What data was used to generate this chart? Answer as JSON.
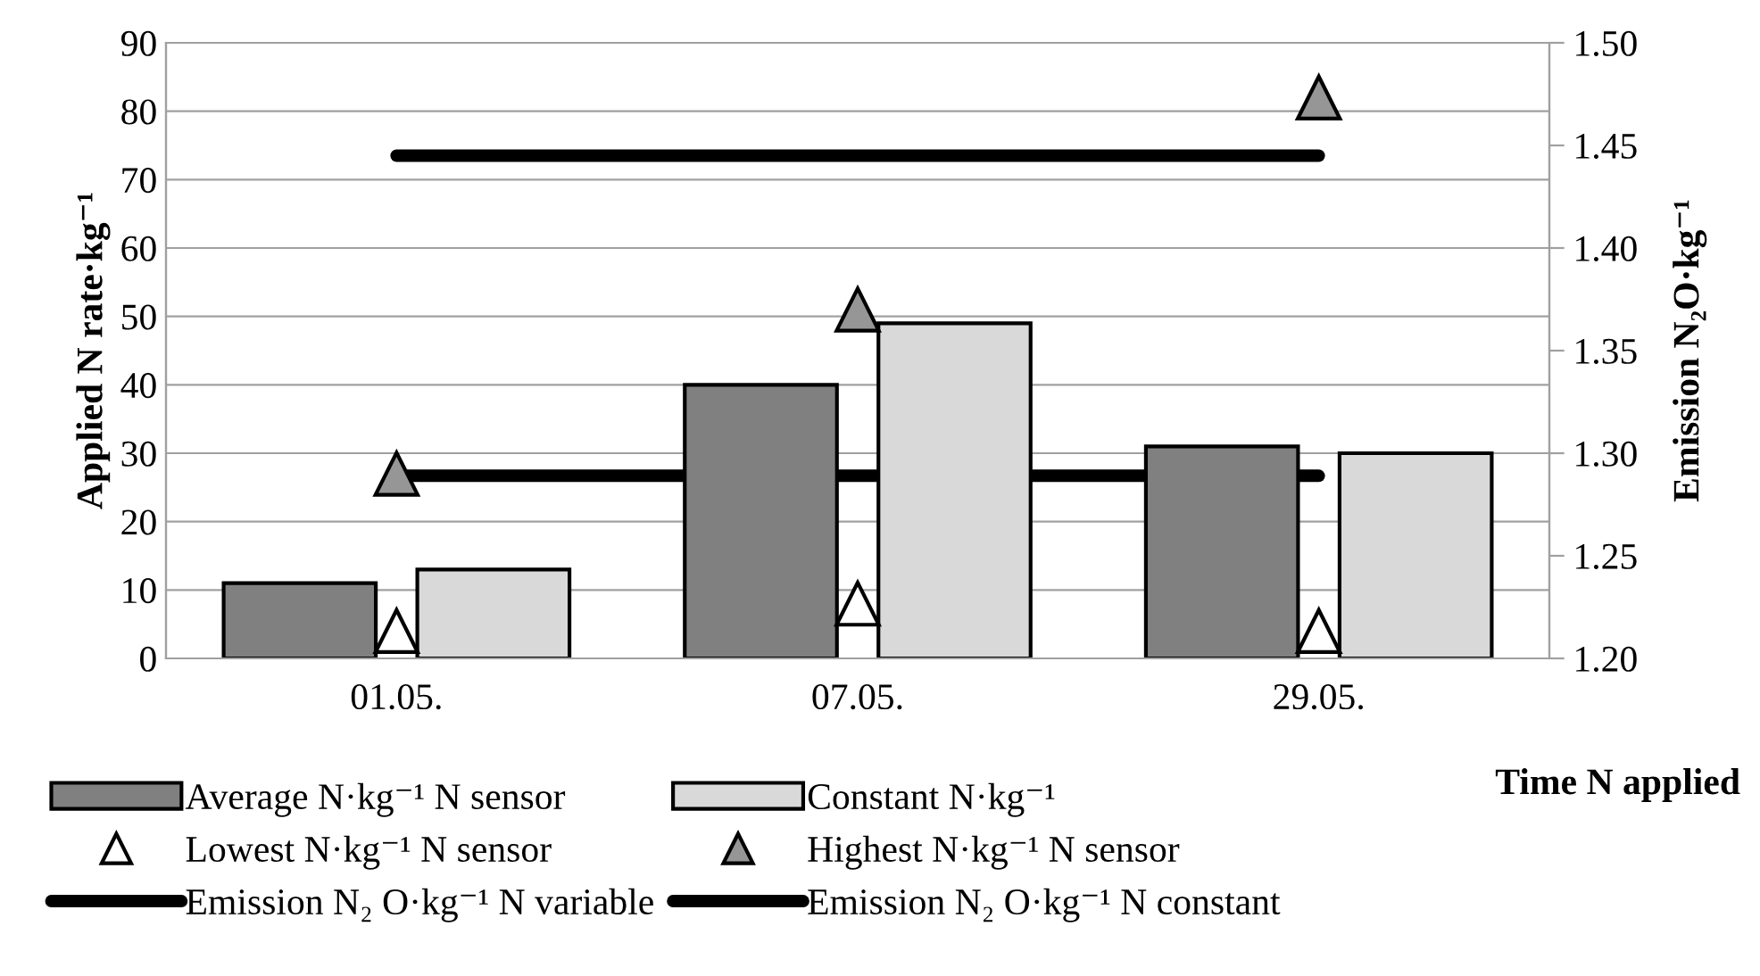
{
  "chart_data": {
    "type": "bar",
    "categories": [
      "01.05.",
      "07.05.",
      "29.05."
    ],
    "xlabel": "Time N applied",
    "ylabel": "Applied N rate·kg⁻¹",
    "y2label": "Emission N₂O·kg⁻¹",
    "ylim": [
      0,
      90
    ],
    "yticks": [
      0,
      10,
      20,
      30,
      40,
      50,
      60,
      70,
      80,
      90
    ],
    "y2lim": [
      1.2,
      1.5
    ],
    "y2ticks": [
      {
        "value": 1.2,
        "label": "1.20"
      },
      {
        "value": 1.25,
        "label": "1.25"
      },
      {
        "value": 1.3,
        "label": "1.30"
      },
      {
        "value": 1.35,
        "label": "1.35"
      },
      {
        "value": 1.4,
        "label": "1.40"
      },
      {
        "value": 1.45,
        "label": "1.45"
      },
      {
        "value": 1.5,
        "label": "1.50"
      }
    ],
    "grid": "y",
    "legend": "bottom",
    "series": [
      {
        "name": "Average N·kg⁻¹ N sensor",
        "color": "#808080",
        "values": [
          11,
          40,
          31
        ]
      },
      {
        "name": "Constant N·kg⁻¹",
        "color": "#d9d9d9",
        "values": [
          13,
          49,
          30
        ]
      },
      {
        "name": "Lowest N·kg⁻¹ N sensor",
        "type": "scatter",
        "marker": "triangle",
        "color": "#ffffff",
        "values": [
          4,
          8,
          4
        ]
      },
      {
        "name": "Highest N·kg⁻¹ N sensor",
        "type": "scatter",
        "marker": "triangle",
        "color": "#969696",
        "values": [
          27,
          51,
          82
        ]
      },
      {
        "name": "Emission N₂ O·kg⁻¹ N variable",
        "type": "line",
        "axis": "y2",
        "color": "#000000",
        "values": [
          1.445,
          1.445,
          1.445
        ]
      },
      {
        "name": "Emission N₂ O·kg⁻¹ N constant",
        "type": "line",
        "axis": "y2",
        "color": "#000000",
        "values": [
          1.289,
          1.289,
          1.289
        ]
      }
    ]
  }
}
